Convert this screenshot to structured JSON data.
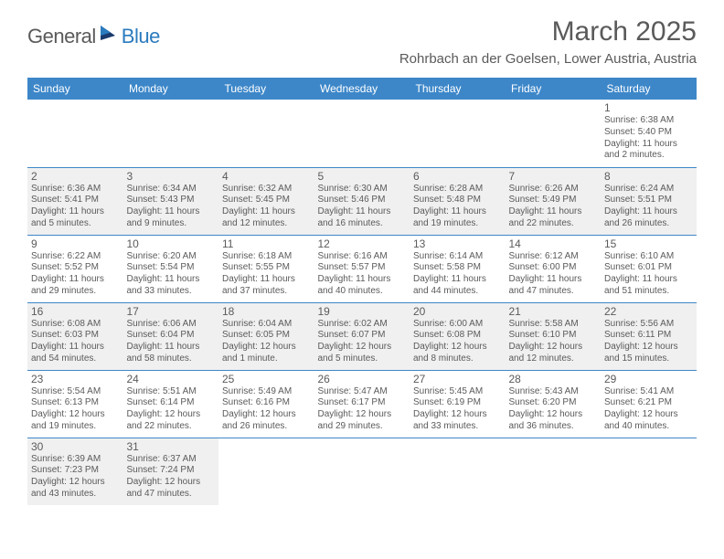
{
  "logo": {
    "part1": "General",
    "part2": "Blue"
  },
  "title": "March 2025",
  "location": "Rohrbach an der Goelsen, Lower Austria, Austria",
  "colors": {
    "header_bg": "#3d87c9",
    "header_text": "#ffffff",
    "text": "#5a5a5a",
    "shaded": "#f0f0f0",
    "logo_gray": "#5a5a5a",
    "logo_blue": "#2b7bbf",
    "border": "#3d87c9",
    "background": "#ffffff"
  },
  "daysOfWeek": [
    "Sunday",
    "Monday",
    "Tuesday",
    "Wednesday",
    "Thursday",
    "Friday",
    "Saturday"
  ],
  "weeks": [
    [
      {
        "empty": true
      },
      {
        "empty": true
      },
      {
        "empty": true
      },
      {
        "empty": true
      },
      {
        "empty": true
      },
      {
        "empty": true
      },
      {
        "day": "1",
        "sunrise": "Sunrise: 6:38 AM",
        "sunset": "Sunset: 5:40 PM",
        "day1": "Daylight: 11 hours",
        "day2": "and 2 minutes."
      }
    ],
    [
      {
        "day": "2",
        "shaded": true,
        "sunrise": "Sunrise: 6:36 AM",
        "sunset": "Sunset: 5:41 PM",
        "day1": "Daylight: 11 hours",
        "day2": "and 5 minutes."
      },
      {
        "day": "3",
        "shaded": true,
        "sunrise": "Sunrise: 6:34 AM",
        "sunset": "Sunset: 5:43 PM",
        "day1": "Daylight: 11 hours",
        "day2": "and 9 minutes."
      },
      {
        "day": "4",
        "shaded": true,
        "sunrise": "Sunrise: 6:32 AM",
        "sunset": "Sunset: 5:45 PM",
        "day1": "Daylight: 11 hours",
        "day2": "and 12 minutes."
      },
      {
        "day": "5",
        "shaded": true,
        "sunrise": "Sunrise: 6:30 AM",
        "sunset": "Sunset: 5:46 PM",
        "day1": "Daylight: 11 hours",
        "day2": "and 16 minutes."
      },
      {
        "day": "6",
        "shaded": true,
        "sunrise": "Sunrise: 6:28 AM",
        "sunset": "Sunset: 5:48 PM",
        "day1": "Daylight: 11 hours",
        "day2": "and 19 minutes."
      },
      {
        "day": "7",
        "shaded": true,
        "sunrise": "Sunrise: 6:26 AM",
        "sunset": "Sunset: 5:49 PM",
        "day1": "Daylight: 11 hours",
        "day2": "and 22 minutes."
      },
      {
        "day": "8",
        "shaded": true,
        "sunrise": "Sunrise: 6:24 AM",
        "sunset": "Sunset: 5:51 PM",
        "day1": "Daylight: 11 hours",
        "day2": "and 26 minutes."
      }
    ],
    [
      {
        "day": "9",
        "sunrise": "Sunrise: 6:22 AM",
        "sunset": "Sunset: 5:52 PM",
        "day1": "Daylight: 11 hours",
        "day2": "and 29 minutes."
      },
      {
        "day": "10",
        "sunrise": "Sunrise: 6:20 AM",
        "sunset": "Sunset: 5:54 PM",
        "day1": "Daylight: 11 hours",
        "day2": "and 33 minutes."
      },
      {
        "day": "11",
        "sunrise": "Sunrise: 6:18 AM",
        "sunset": "Sunset: 5:55 PM",
        "day1": "Daylight: 11 hours",
        "day2": "and 37 minutes."
      },
      {
        "day": "12",
        "sunrise": "Sunrise: 6:16 AM",
        "sunset": "Sunset: 5:57 PM",
        "day1": "Daylight: 11 hours",
        "day2": "and 40 minutes."
      },
      {
        "day": "13",
        "sunrise": "Sunrise: 6:14 AM",
        "sunset": "Sunset: 5:58 PM",
        "day1": "Daylight: 11 hours",
        "day2": "and 44 minutes."
      },
      {
        "day": "14",
        "sunrise": "Sunrise: 6:12 AM",
        "sunset": "Sunset: 6:00 PM",
        "day1": "Daylight: 11 hours",
        "day2": "and 47 minutes."
      },
      {
        "day": "15",
        "sunrise": "Sunrise: 6:10 AM",
        "sunset": "Sunset: 6:01 PM",
        "day1": "Daylight: 11 hours",
        "day2": "and 51 minutes."
      }
    ],
    [
      {
        "day": "16",
        "shaded": true,
        "sunrise": "Sunrise: 6:08 AM",
        "sunset": "Sunset: 6:03 PM",
        "day1": "Daylight: 11 hours",
        "day2": "and 54 minutes."
      },
      {
        "day": "17",
        "shaded": true,
        "sunrise": "Sunrise: 6:06 AM",
        "sunset": "Sunset: 6:04 PM",
        "day1": "Daylight: 11 hours",
        "day2": "and 58 minutes."
      },
      {
        "day": "18",
        "shaded": true,
        "sunrise": "Sunrise: 6:04 AM",
        "sunset": "Sunset: 6:05 PM",
        "day1": "Daylight: 12 hours",
        "day2": "and 1 minute."
      },
      {
        "day": "19",
        "shaded": true,
        "sunrise": "Sunrise: 6:02 AM",
        "sunset": "Sunset: 6:07 PM",
        "day1": "Daylight: 12 hours",
        "day2": "and 5 minutes."
      },
      {
        "day": "20",
        "shaded": true,
        "sunrise": "Sunrise: 6:00 AM",
        "sunset": "Sunset: 6:08 PM",
        "day1": "Daylight: 12 hours",
        "day2": "and 8 minutes."
      },
      {
        "day": "21",
        "shaded": true,
        "sunrise": "Sunrise: 5:58 AM",
        "sunset": "Sunset: 6:10 PM",
        "day1": "Daylight: 12 hours",
        "day2": "and 12 minutes."
      },
      {
        "day": "22",
        "shaded": true,
        "sunrise": "Sunrise: 5:56 AM",
        "sunset": "Sunset: 6:11 PM",
        "day1": "Daylight: 12 hours",
        "day2": "and 15 minutes."
      }
    ],
    [
      {
        "day": "23",
        "sunrise": "Sunrise: 5:54 AM",
        "sunset": "Sunset: 6:13 PM",
        "day1": "Daylight: 12 hours",
        "day2": "and 19 minutes."
      },
      {
        "day": "24",
        "sunrise": "Sunrise: 5:51 AM",
        "sunset": "Sunset: 6:14 PM",
        "day1": "Daylight: 12 hours",
        "day2": "and 22 minutes."
      },
      {
        "day": "25",
        "sunrise": "Sunrise: 5:49 AM",
        "sunset": "Sunset: 6:16 PM",
        "day1": "Daylight: 12 hours",
        "day2": "and 26 minutes."
      },
      {
        "day": "26",
        "sunrise": "Sunrise: 5:47 AM",
        "sunset": "Sunset: 6:17 PM",
        "day1": "Daylight: 12 hours",
        "day2": "and 29 minutes."
      },
      {
        "day": "27",
        "sunrise": "Sunrise: 5:45 AM",
        "sunset": "Sunset: 6:19 PM",
        "day1": "Daylight: 12 hours",
        "day2": "and 33 minutes."
      },
      {
        "day": "28",
        "sunrise": "Sunrise: 5:43 AM",
        "sunset": "Sunset: 6:20 PM",
        "day1": "Daylight: 12 hours",
        "day2": "and 36 minutes."
      },
      {
        "day": "29",
        "sunrise": "Sunrise: 5:41 AM",
        "sunset": "Sunset: 6:21 PM",
        "day1": "Daylight: 12 hours",
        "day2": "and 40 minutes."
      }
    ],
    [
      {
        "day": "30",
        "shaded": true,
        "sunrise": "Sunrise: 6:39 AM",
        "sunset": "Sunset: 7:23 PM",
        "day1": "Daylight: 12 hours",
        "day2": "and 43 minutes."
      },
      {
        "day": "31",
        "shaded": true,
        "sunrise": "Sunrise: 6:37 AM",
        "sunset": "Sunset: 7:24 PM",
        "day1": "Daylight: 12 hours",
        "day2": "and 47 minutes."
      },
      {
        "empty": true
      },
      {
        "empty": true
      },
      {
        "empty": true
      },
      {
        "empty": true
      },
      {
        "empty": true
      }
    ]
  ]
}
